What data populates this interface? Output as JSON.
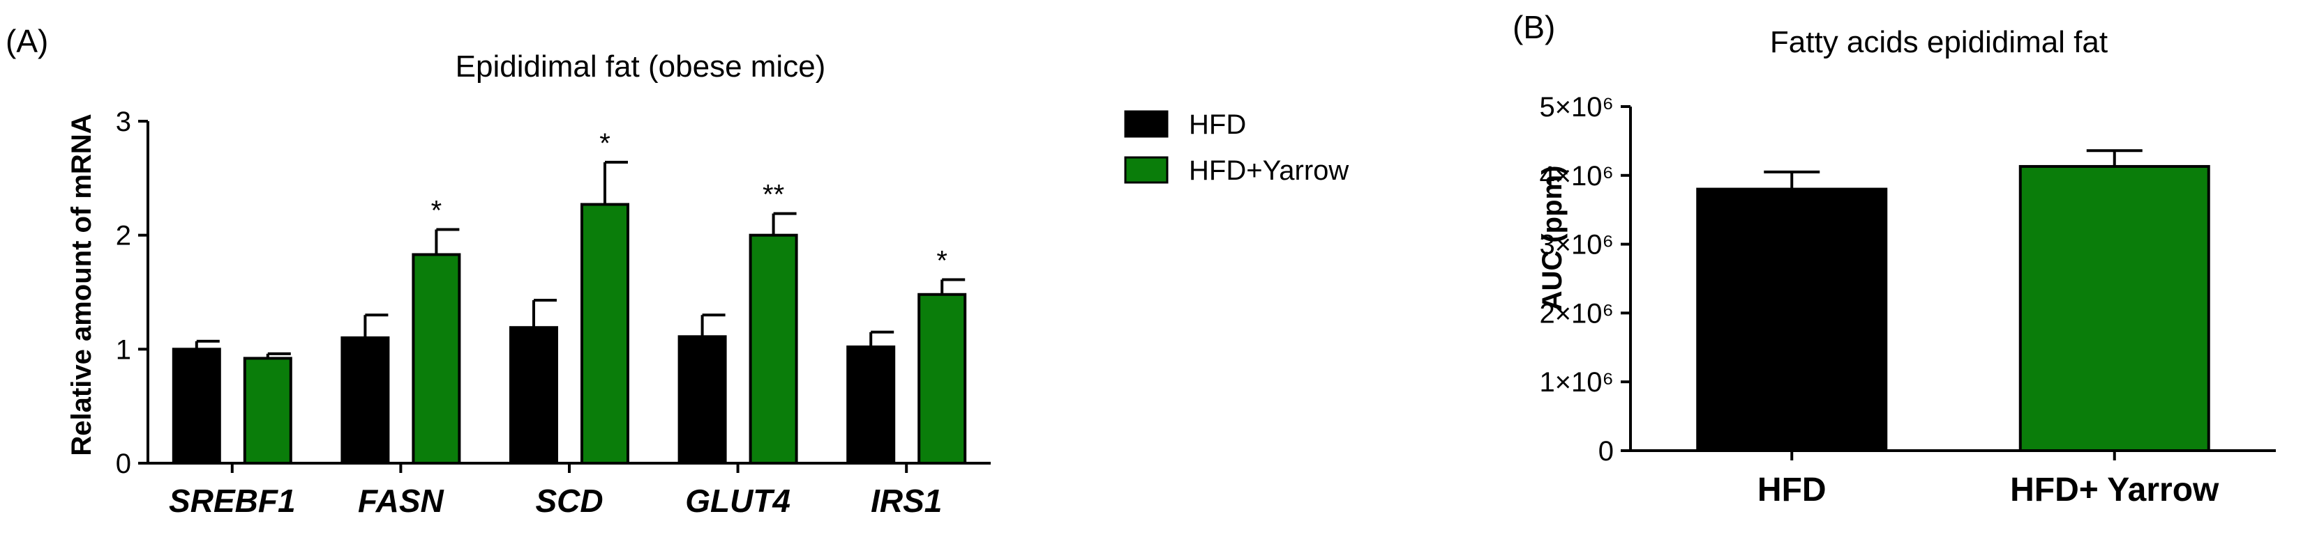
{
  "colors": {
    "hfd": "#000000",
    "yarrow": "#0a7d0a",
    "axis": "#000000"
  },
  "chart_data": [
    {
      "panel": "(A)",
      "type": "bar",
      "title": "Epididimal fat (obese mice)",
      "ylabel": "Relative amount of mRNA",
      "xlabel": "",
      "ylim": [
        0,
        3
      ],
      "yticks": [
        "0",
        "1",
        "2",
        "3"
      ],
      "categories": [
        "SREBF1",
        "FASN",
        "SCD",
        "GLUT4",
        "IRS1"
      ],
      "legend": {
        "placement": "top-right",
        "entries": [
          "HFD",
          "HFD+Yarrow"
        ]
      },
      "series": [
        {
          "name": "HFD",
          "values": [
            1.0,
            1.1,
            1.19,
            1.11,
            1.02
          ],
          "errors": [
            0.07,
            0.2,
            0.24,
            0.19,
            0.13
          ],
          "color": "#000000"
        },
        {
          "name": "HFD+Yarrow",
          "values": [
            0.92,
            1.83,
            2.27,
            2.0,
            1.48
          ],
          "errors": [
            0.04,
            0.22,
            0.37,
            0.19,
            0.13
          ],
          "color": "#0a7d0a"
        }
      ],
      "significance": [
        "",
        "*",
        "*",
        "**",
        "*"
      ]
    },
    {
      "panel": "(B)",
      "type": "bar",
      "title": "Fatty acids epididimal fat",
      "ylabel": "AUC (ppm)",
      "xlabel": "",
      "ylim": [
        0,
        5000000
      ],
      "yticks": [
        "0",
        "1×10⁶",
        "2×10⁶",
        "3×10⁶",
        "4×10⁶",
        "5×10⁶"
      ],
      "categories": [
        "HFD",
        "HFD+ Yarrow"
      ],
      "values": [
        3800000,
        4130000
      ],
      "errors": [
        250000,
        230000
      ],
      "colors": [
        "#000000",
        "#0a7d0a"
      ]
    }
  ]
}
